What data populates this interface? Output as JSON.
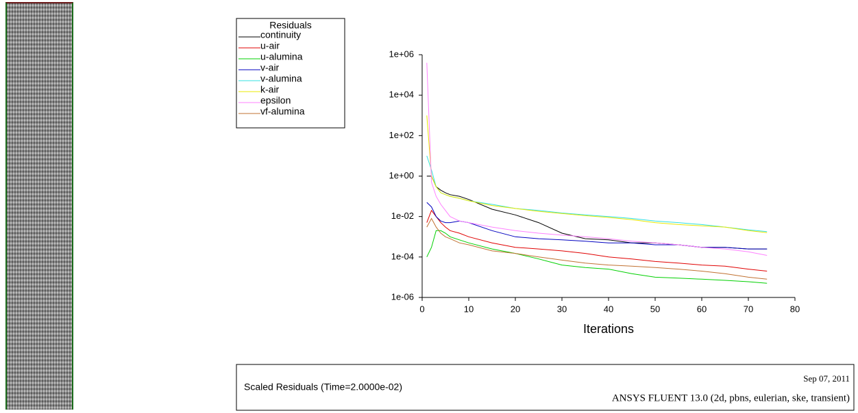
{
  "chart_data": {
    "type": "line",
    "title": "Residuals",
    "xlabel": "Iterations",
    "footer_left": "Scaled Residuals  (Time=2.0000e-02)",
    "footer_date": "Sep 07, 2011",
    "footer_right": "ANSYS FLUENT 13.0  (2d, pbns, eulerian, ske, transient)",
    "log_y": true,
    "xlim": [
      0,
      80
    ],
    "xticks": [
      0,
      10,
      20,
      30,
      40,
      50,
      60,
      70,
      80
    ],
    "ylim": [
      1e-06,
      1000000.0
    ],
    "yticks": [
      {
        "value": 1e-06,
        "label": "1e-06"
      },
      {
        "value": 0.0001,
        "label": "1e-04"
      },
      {
        "value": 0.01,
        "label": "1e-02"
      },
      {
        "value": 1,
        "label": "1e+00"
      },
      {
        "value": 100,
        "label": "1e+02"
      },
      {
        "value": 10000,
        "label": "1e+04"
      },
      {
        "value": 1000000,
        "label": "1e+06"
      }
    ],
    "x": [
      1,
      2,
      3,
      4,
      5,
      6,
      8,
      10,
      15,
      20,
      25,
      30,
      35,
      40,
      45,
      50,
      55,
      60,
      65,
      70,
      74
    ],
    "series": [
      {
        "name": "continuity",
        "color": "#000000",
        "values": [
          1,
          1,
          0.3,
          0.2,
          0.15,
          0.12,
          0.1,
          0.07,
          0.023,
          0.012,
          0.005,
          0.0015,
          0.0008,
          0.0007,
          0.0005,
          0.0005,
          0.0004,
          0.0003,
          0.0003,
          0.00025,
          0.00025
        ]
      },
      {
        "name": "u-air",
        "color": "#e00000",
        "values": [
          0.005,
          0.02,
          0.01,
          0.005,
          0.003,
          0.002,
          0.0015,
          0.001,
          0.0005,
          0.0003,
          0.00025,
          0.0002,
          0.00015,
          0.0001,
          8e-05,
          6e-05,
          5e-05,
          4e-05,
          3.5e-05,
          2.5e-05,
          2e-05
        ]
      },
      {
        "name": "u-alumina",
        "color": "#00d000",
        "values": [
          0.0001,
          0.0003,
          0.002,
          0.002,
          0.0015,
          0.001,
          0.0007,
          0.0005,
          0.00025,
          0.00015,
          8e-05,
          4e-05,
          3e-05,
          2.5e-05,
          1.5e-05,
          1e-05,
          9e-06,
          8e-06,
          7e-06,
          6e-06,
          5e-06
        ]
      },
      {
        "name": "v-air",
        "color": "#0000c0",
        "values": [
          0.05,
          0.03,
          0.01,
          0.006,
          0.005,
          0.005,
          0.006,
          0.005,
          0.002,
          0.001,
          0.0008,
          0.0007,
          0.0006,
          0.0005,
          0.0005,
          0.0004,
          0.0004,
          0.0003,
          0.0003,
          0.00025,
          0.00025
        ]
      },
      {
        "name": "v-alumina",
        "color": "#30e0e0",
        "values": [
          10,
          2,
          0.3,
          0.15,
          0.12,
          0.1,
          0.08,
          0.06,
          0.04,
          0.025,
          0.02,
          0.015,
          0.012,
          0.01,
          0.008,
          0.006,
          0.005,
          0.004,
          0.003,
          0.0022,
          0.0018
        ]
      },
      {
        "name": "k-air",
        "color": "#e8e800",
        "values": [
          1000,
          1,
          0.3,
          0.15,
          0.12,
          0.1,
          0.08,
          0.06,
          0.035,
          0.025,
          0.018,
          0.014,
          0.011,
          0.009,
          0.007,
          0.005,
          0.004,
          0.0035,
          0.003,
          0.002,
          0.0016
        ]
      },
      {
        "name": "epsilon",
        "color": "#ff80ff",
        "values": [
          400000,
          0.5,
          0.1,
          0.04,
          0.02,
          0.01,
          0.006,
          0.005,
          0.003,
          0.002,
          0.0015,
          0.0012,
          0.001,
          0.0008,
          0.0006,
          0.0005,
          0.0004,
          0.0003,
          0.00025,
          0.00018,
          0.00012
        ]
      },
      {
        "name": "vf-alumina",
        "color": "#c07030",
        "values": [
          0.003,
          0.008,
          0.003,
          0.0015,
          0.001,
          0.0008,
          0.0005,
          0.0004,
          0.0002,
          0.00015,
          0.0001,
          7e-05,
          5e-05,
          4e-05,
          3.5e-05,
          3e-05,
          2.5e-05,
          2e-05,
          1.5e-05,
          1e-05,
          8e-06
        ]
      }
    ]
  }
}
